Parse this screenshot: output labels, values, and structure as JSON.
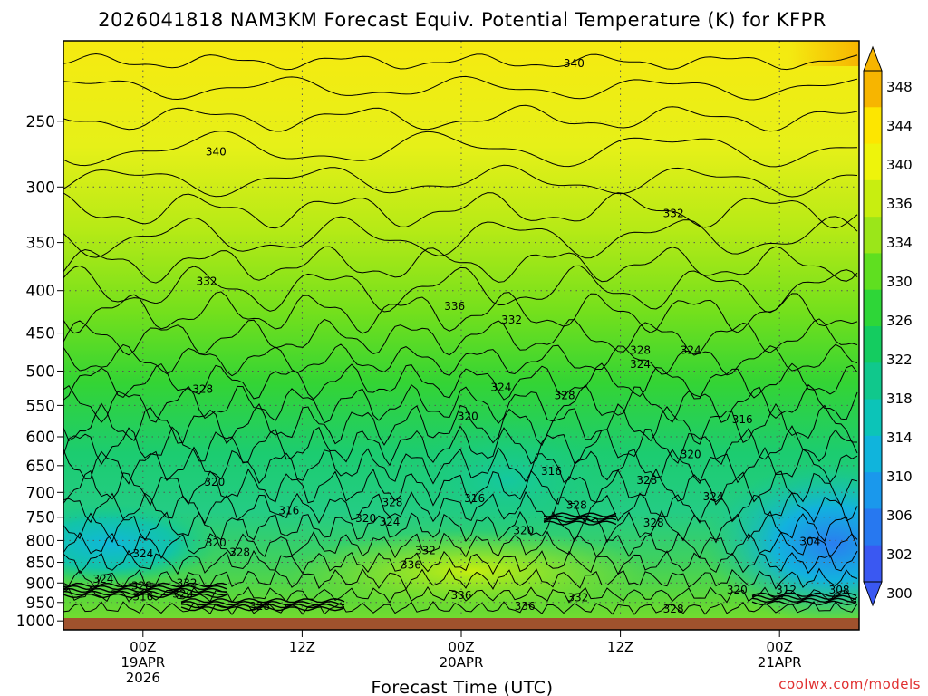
{
  "chart_data": {
    "type": "contour",
    "title": "2026041818 NAM3KM Forecast Equiv. Potential Temperature (K) for KFPR",
    "xlabel": "Forecast Time (UTC)",
    "credit": "coolwx.com/models",
    "x_ticks": [
      {
        "line1": "00Z",
        "line2": "19APR",
        "line3": "2026",
        "hours": 6
      },
      {
        "line1": "12Z",
        "line2": "",
        "line3": "",
        "hours": 18
      },
      {
        "line1": "00Z",
        "line2": "20APR",
        "line3": "",
        "hours": 30
      },
      {
        "line1": "12Z",
        "line2": "",
        "line3": "",
        "hours": 42
      },
      {
        "line1": "00Z",
        "line2": "21APR",
        "line3": "",
        "hours": 54
      }
    ],
    "x_range_hours": [
      0,
      60
    ],
    "y_ticks": [
      250,
      300,
      350,
      400,
      450,
      500,
      550,
      600,
      650,
      700,
      750,
      800,
      850,
      900,
      950,
      1000
    ],
    "y_range_hpa": [
      200,
      1025
    ],
    "y_scale": "log",
    "grid": true,
    "colorbar": {
      "labels": [
        348,
        344,
        340,
        336,
        334,
        330,
        326,
        322,
        318,
        314,
        310,
        306,
        302,
        300
      ],
      "colors": [
        "#f7b500",
        "#fde600",
        "#eef40b",
        "#c8ee10",
        "#9be619",
        "#5fdf20",
        "#2ed638",
        "#14cc60",
        "#10c88c",
        "#0cc4b8",
        "#10b4dc",
        "#1a98ec",
        "#2778f0",
        "#3a58f2"
      ]
    },
    "contour_labels": [
      {
        "text": "340",
        "hours": 38.5,
        "hpa": 213
      },
      {
        "text": "340",
        "hours": 11.5,
        "hpa": 272
      },
      {
        "text": "332",
        "hours": 46,
        "hpa": 323
      },
      {
        "text": "332",
        "hours": 10.8,
        "hpa": 390
      },
      {
        "text": "336",
        "hours": 29.5,
        "hpa": 418
      },
      {
        "text": "332",
        "hours": 33.8,
        "hpa": 434
      },
      {
        "text": "328",
        "hours": 43.5,
        "hpa": 472
      },
      {
        "text": "324",
        "hours": 47.3,
        "hpa": 472
      },
      {
        "text": "324",
        "hours": 43.5,
        "hpa": 491
      },
      {
        "text": "328",
        "hours": 10.5,
        "hpa": 526
      },
      {
        "text": "324",
        "hours": 33,
        "hpa": 523
      },
      {
        "text": "328",
        "hours": 37.8,
        "hpa": 535
      },
      {
        "text": "320",
        "hours": 30.5,
        "hpa": 567
      },
      {
        "text": "316",
        "hours": 51.2,
        "hpa": 572
      },
      {
        "text": "320",
        "hours": 47.3,
        "hpa": 630
      },
      {
        "text": "316",
        "hours": 36.8,
        "hpa": 660
      },
      {
        "text": "328",
        "hours": 44,
        "hpa": 677
      },
      {
        "text": "320",
        "hours": 11.4,
        "hpa": 680
      },
      {
        "text": "316",
        "hours": 31,
        "hpa": 712
      },
      {
        "text": "324",
        "hours": 49,
        "hpa": 708
      },
      {
        "text": "328",
        "hours": 38.7,
        "hpa": 725
      },
      {
        "text": "328",
        "hours": 24.8,
        "hpa": 720
      },
      {
        "text": "316",
        "hours": 17,
        "hpa": 736
      },
      {
        "text": "320",
        "hours": 22.8,
        "hpa": 752
      },
      {
        "text": "324",
        "hours": 24.6,
        "hpa": 760
      },
      {
        "text": "328",
        "hours": 44.5,
        "hpa": 762
      },
      {
        "text": "320",
        "hours": 34.7,
        "hpa": 778
      },
      {
        "text": "320",
        "hours": 11.5,
        "hpa": 805
      },
      {
        "text": "304",
        "hours": 56.3,
        "hpa": 802
      },
      {
        "text": "328",
        "hours": 13.3,
        "hpa": 827
      },
      {
        "text": "324",
        "hours": 6,
        "hpa": 830
      },
      {
        "text": "332",
        "hours": 27.3,
        "hpa": 823
      },
      {
        "text": "336",
        "hours": 26.2,
        "hpa": 856
      },
      {
        "text": "324",
        "hours": 3,
        "hpa": 890
      },
      {
        "text": "328",
        "hours": 5.9,
        "hpa": 907
      },
      {
        "text": "332",
        "hours": 9.3,
        "hpa": 900
      },
      {
        "text": "316",
        "hours": 6,
        "hpa": 935
      },
      {
        "text": "320",
        "hours": 9,
        "hpa": 928
      },
      {
        "text": "320",
        "hours": 50.8,
        "hpa": 918
      },
      {
        "text": "312",
        "hours": 54.5,
        "hpa": 918
      },
      {
        "text": "308",
        "hours": 58.5,
        "hpa": 918
      },
      {
        "text": "336",
        "hours": 30,
        "hpa": 932
      },
      {
        "text": "332",
        "hours": 38.8,
        "hpa": 938
      },
      {
        "text": "336",
        "hours": 34.8,
        "hpa": 960
      },
      {
        "text": "328",
        "hours": 14.8,
        "hpa": 960
      },
      {
        "text": "328",
        "hours": 46,
        "hpa": 968
      }
    ]
  }
}
